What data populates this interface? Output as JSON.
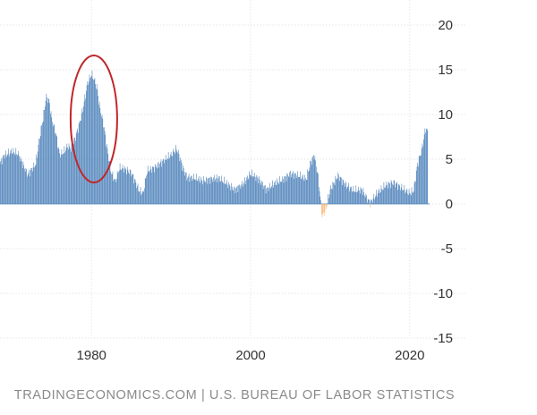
{
  "chart_data": {
    "type": "bar",
    "title": "",
    "xlabel": "",
    "ylabel": "",
    "ylim": [
      -15,
      20
    ],
    "y_ticks": [
      20,
      15,
      10,
      5,
      0,
      -5,
      -10,
      -15
    ],
    "x_ticks": [
      1980,
      2000,
      2020
    ],
    "xlim": [
      1968.5,
      2022.5
    ],
    "grid": true,
    "legend": "none",
    "colors": {
      "positive": "#4a7fb8",
      "negative": "#f5b97a",
      "highlight": "#c0262b"
    },
    "annotation": {
      "shape": "ellipse",
      "x": 1980.3,
      "y": 9.5,
      "label": ""
    },
    "series": [
      {
        "name": "",
        "x": [
          1968.5,
          1969,
          1970,
          1970.8,
          1971.5,
          1972,
          1973,
          1973.5,
          1974,
          1974.3,
          1974.7,
          1975,
          1975.5,
          1976,
          1976.5,
          1977,
          1977.5,
          1978,
          1978.5,
          1979,
          1979.5,
          1980,
          1980.3,
          1980.7,
          1981,
          1981.5,
          1982,
          1982.5,
          1983,
          1983.5,
          1984,
          1985,
          1986,
          1986.5,
          1987,
          1988,
          1989,
          1990,
          1990.7,
          1991,
          1991.5,
          1992,
          1993,
          1994,
          1995,
          1996,
          1997,
          1998,
          1999,
          2000,
          2001,
          2002,
          2003,
          2004,
          2005,
          2006,
          2007,
          2007.5,
          2008,
          2008.5,
          2009,
          2009.5,
          2010,
          2011,
          2012,
          2013,
          2014,
          2015,
          2016,
          2017,
          2018,
          2019,
          2020,
          2020.5,
          2021,
          2021.5,
          2022,
          2022.3
        ],
        "values": [
          4.5,
          5.4,
          5.9,
          5.6,
          4.2,
          3.3,
          4.5,
          7.5,
          10.0,
          12.0,
          11.5,
          9.5,
          8.0,
          5.5,
          5.8,
          6.5,
          6.2,
          7.5,
          9.0,
          11.0,
          13.5,
          14.5,
          14.0,
          13.0,
          11.0,
          9.0,
          6.0,
          3.5,
          2.5,
          4.0,
          4.0,
          3.5,
          1.5,
          1.2,
          3.7,
          4.1,
          4.8,
          5.5,
          6.2,
          5.5,
          4.0,
          3.0,
          2.9,
          2.6,
          2.8,
          2.9,
          2.3,
          1.6,
          2.2,
          3.4,
          2.8,
          1.6,
          2.3,
          2.7,
          3.4,
          3.2,
          2.8,
          4.5,
          5.5,
          3.0,
          -1.5,
          -0.5,
          1.6,
          3.2,
          2.1,
          1.5,
          1.6,
          0.1,
          1.3,
          2.1,
          2.4,
          1.8,
          1.2,
          1.5,
          4.5,
          6.0,
          8.5,
          8.0
        ]
      }
    ]
  },
  "footer": {
    "source": "TRADINGECONOMICS.COM | U.S. BUREAU OF LABOR STATISTICS"
  }
}
